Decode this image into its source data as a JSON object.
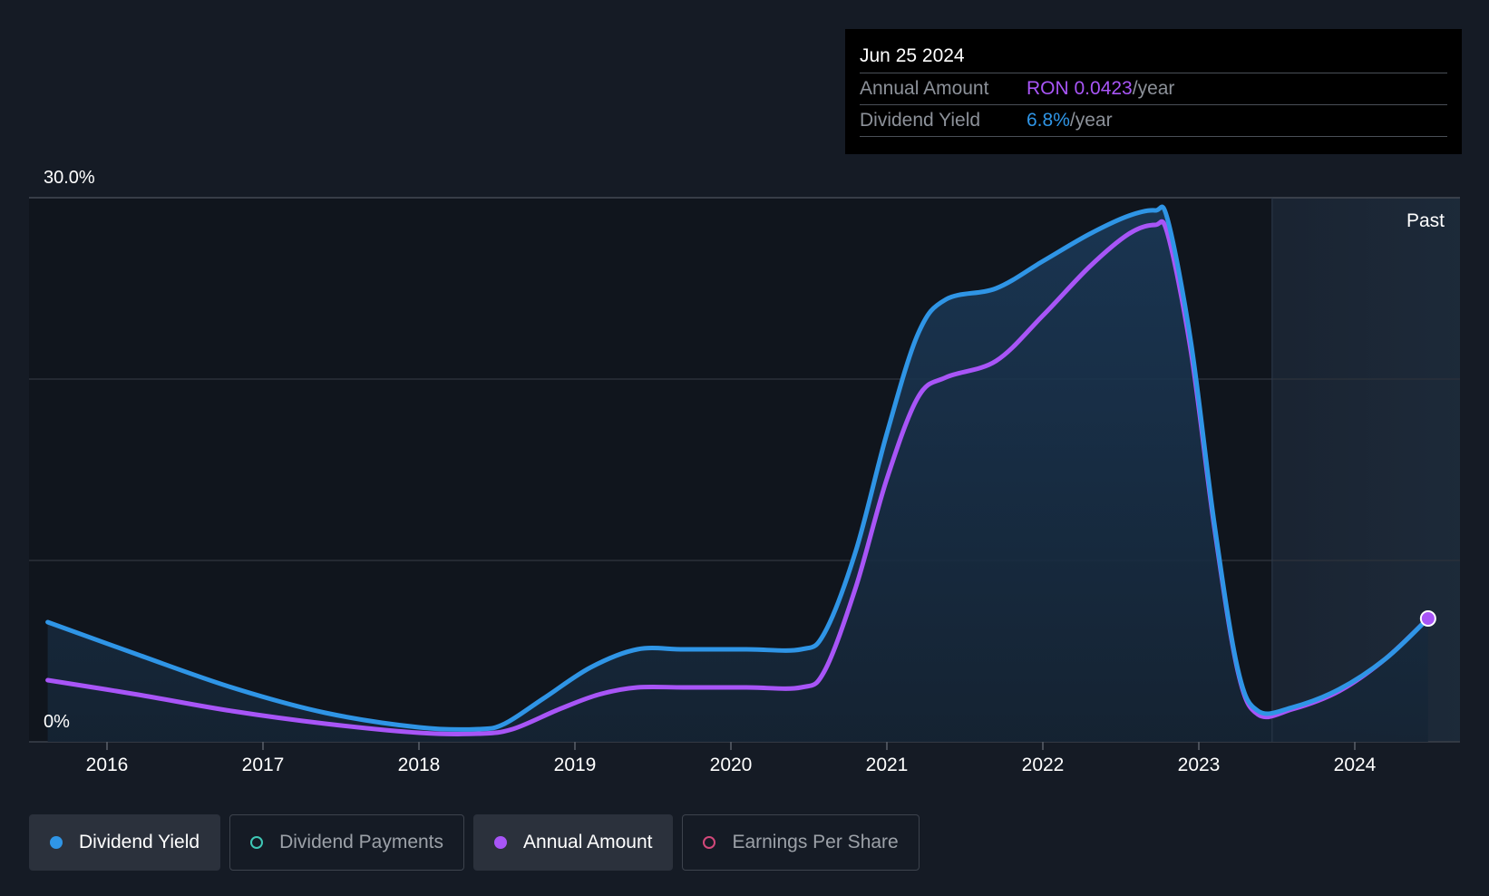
{
  "tooltip": {
    "date": "Jun 25 2024",
    "rows": [
      {
        "key": "Annual Amount",
        "value": "RON 0.0423",
        "suffix": "/year",
        "color": "#a855f7"
      },
      {
        "key": "Dividend Yield",
        "value": "6.8%",
        "suffix": "/year",
        "color": "#2f95e6"
      }
    ]
  },
  "legend": [
    {
      "label": "Dividend Yield",
      "active": true,
      "filled": true,
      "color": "#2f95e6"
    },
    {
      "label": "Dividend Payments",
      "active": false,
      "filled": false,
      "color": "#3fc7b6"
    },
    {
      "label": "Annual Amount",
      "active": true,
      "filled": true,
      "color": "#a855f7"
    },
    {
      "label": "Earnings Per Share",
      "active": false,
      "filled": false,
      "color": "#d2487a"
    }
  ],
  "chart_data": {
    "type": "area",
    "x_ticks": [
      "2016",
      "2017",
      "2018",
      "2019",
      "2020",
      "2021",
      "2022",
      "2023",
      "2024"
    ],
    "y_ticks": [
      "0%",
      "30.0%"
    ],
    "ylim": [
      0,
      30
    ],
    "xlim": [
      2015.5,
      2024.5
    ],
    "grid": true,
    "past_label": "Past",
    "past_start": 2023.47,
    "series": [
      {
        "name": "Dividend Yield",
        "color": "#2f95e6",
        "filled": true,
        "points": [
          [
            2015.62,
            6.6
          ],
          [
            2016.2,
            4.8
          ],
          [
            2016.8,
            3.0
          ],
          [
            2017.4,
            1.6
          ],
          [
            2018.0,
            0.8
          ],
          [
            2018.38,
            0.7
          ],
          [
            2018.55,
            1.0
          ],
          [
            2018.8,
            2.4
          ],
          [
            2019.1,
            4.1
          ],
          [
            2019.4,
            5.1
          ],
          [
            2019.7,
            5.1
          ],
          [
            2020.1,
            5.1
          ],
          [
            2020.45,
            5.1
          ],
          [
            2020.6,
            6.0
          ],
          [
            2020.8,
            10.5
          ],
          [
            2021.0,
            17.0
          ],
          [
            2021.2,
            22.5
          ],
          [
            2021.38,
            24.4
          ],
          [
            2021.7,
            25.0
          ],
          [
            2022.0,
            26.5
          ],
          [
            2022.3,
            28.0
          ],
          [
            2022.55,
            29.0
          ],
          [
            2022.72,
            29.3
          ],
          [
            2022.8,
            28.8
          ],
          [
            2022.95,
            22.0
          ],
          [
            2023.1,
            12.0
          ],
          [
            2023.25,
            4.0
          ],
          [
            2023.38,
            1.7
          ],
          [
            2023.6,
            1.9
          ],
          [
            2023.9,
            2.9
          ],
          [
            2024.2,
            4.6
          ],
          [
            2024.47,
            6.8
          ]
        ]
      },
      {
        "name": "Annual Amount",
        "color": "#a855f7",
        "filled": false,
        "points": [
          [
            2015.62,
            3.4
          ],
          [
            2016.2,
            2.6
          ],
          [
            2016.8,
            1.7
          ],
          [
            2017.4,
            1.0
          ],
          [
            2018.0,
            0.5
          ],
          [
            2018.38,
            0.45
          ],
          [
            2018.6,
            0.7
          ],
          [
            2018.9,
            1.8
          ],
          [
            2019.15,
            2.6
          ],
          [
            2019.4,
            3.0
          ],
          [
            2019.7,
            3.0
          ],
          [
            2020.1,
            3.0
          ],
          [
            2020.45,
            3.0
          ],
          [
            2020.6,
            3.9
          ],
          [
            2020.8,
            8.5
          ],
          [
            2021.0,
            14.5
          ],
          [
            2021.2,
            19.0
          ],
          [
            2021.38,
            20.1
          ],
          [
            2021.7,
            21.0
          ],
          [
            2022.0,
            23.5
          ],
          [
            2022.3,
            26.2
          ],
          [
            2022.55,
            28.0
          ],
          [
            2022.72,
            28.5
          ],
          [
            2022.8,
            28.0
          ],
          [
            2022.95,
            21.5
          ],
          [
            2023.1,
            11.8
          ],
          [
            2023.25,
            3.9
          ],
          [
            2023.38,
            1.5
          ],
          [
            2023.6,
            1.8
          ],
          [
            2023.9,
            2.8
          ],
          [
            2024.2,
            4.6
          ],
          [
            2024.47,
            6.8
          ]
        ]
      }
    ]
  }
}
